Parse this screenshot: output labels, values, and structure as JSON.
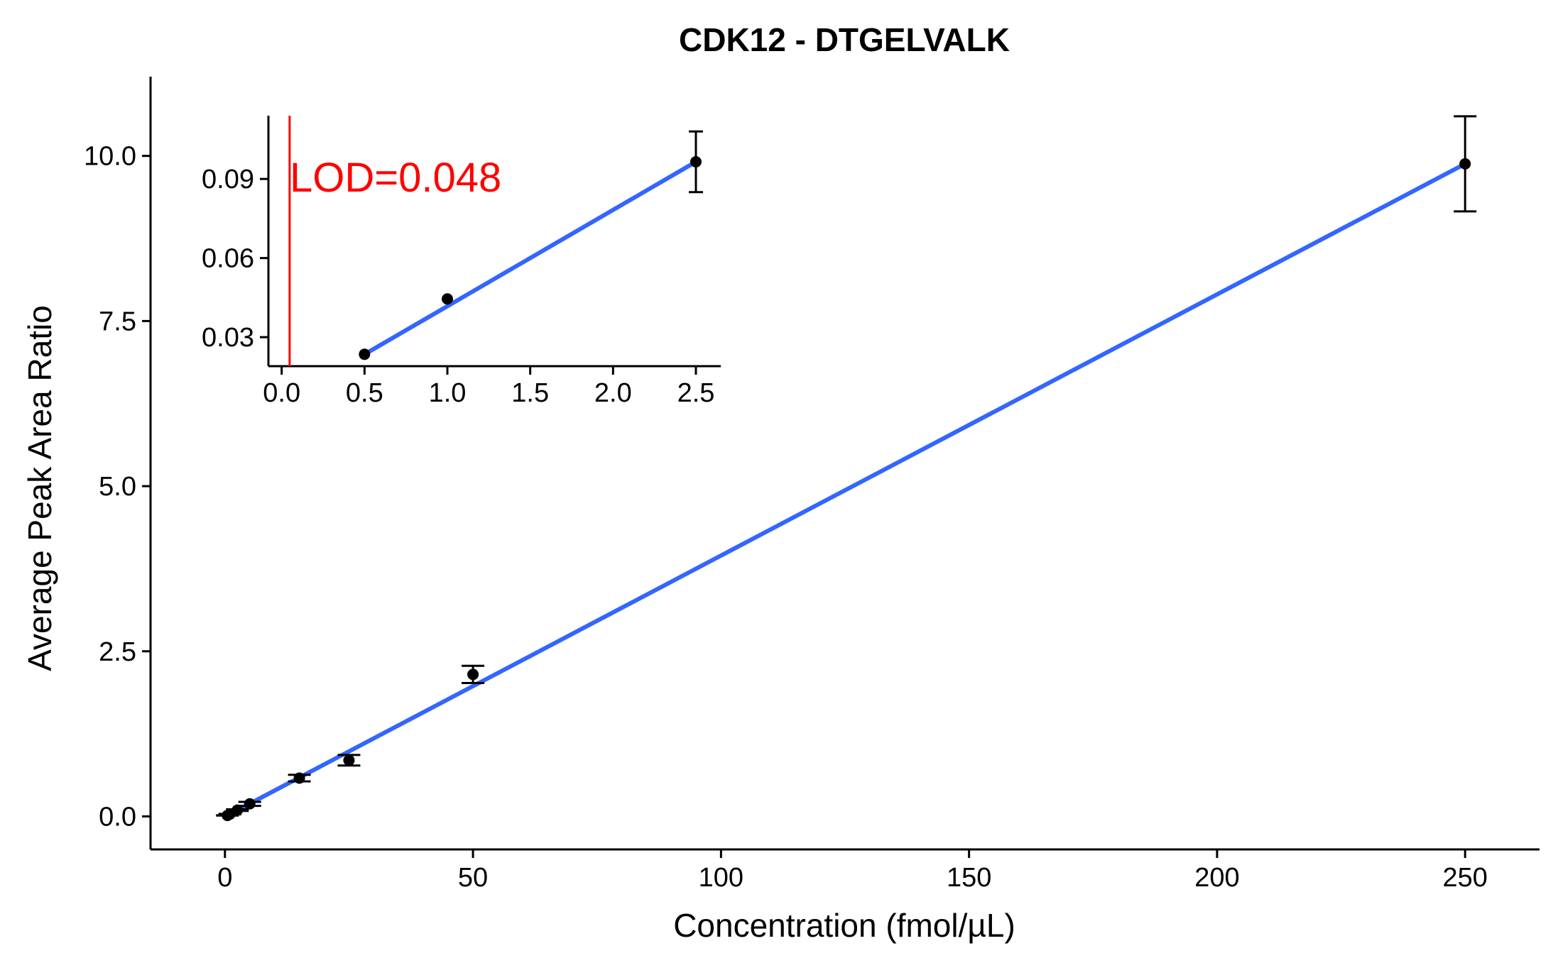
{
  "chart_data": [
    {
      "type": "scatter",
      "title": "CDK12 - DTGELVALK",
      "xlabel": "Concentration (fmol/µL)",
      "ylabel": "Average Peak Area Ratio",
      "xlim": [
        -15,
        265
      ],
      "ylim": [
        -0.5,
        11.2
      ],
      "xticks": [
        0,
        50,
        100,
        150,
        200,
        250
      ],
      "yticks": [
        0.0,
        2.5,
        5.0,
        7.5,
        10.0
      ],
      "xtick_labels": [
        "0",
        "50",
        "100",
        "150",
        "200",
        "250"
      ],
      "ytick_labels": [
        "0.0",
        "2.5",
        "5.0",
        "7.5",
        "10.0"
      ],
      "grid": false,
      "series": [
        {
          "points": [
            {
              "x": 0.5,
              "y": 0.015,
              "err": 0.002
            },
            {
              "x": 1,
              "y": 0.035,
              "err": 0.003
            },
            {
              "x": 2.5,
              "y": 0.095,
              "err": 0.012
            },
            {
              "x": 5,
              "y": 0.19,
              "err": 0.03
            },
            {
              "x": 15,
              "y": 0.58,
              "err": 0.05
            },
            {
              "x": 25,
              "y": 0.85,
              "err": 0.08
            },
            {
              "x": 50,
              "y": 2.15,
              "err": 0.13
            },
            {
              "x": 250,
              "y": 9.88,
              "err": 0.72
            }
          ]
        }
      ],
      "fit_line": {
        "color": "#3366ff",
        "x": [
          0.5,
          250
        ],
        "y": [
          0.015,
          9.88
        ]
      }
    },
    {
      "type": "scatter",
      "position": "inset",
      "xlim": [
        -0.08,
        2.65
      ],
      "ylim": [
        0.019,
        0.114
      ],
      "xticks": [
        0.0,
        0.5,
        1.0,
        1.5,
        2.0,
        2.5
      ],
      "yticks": [
        0.03,
        0.06,
        0.09
      ],
      "xtick_labels": [
        "0.0",
        "0.5",
        "1.0",
        "1.5",
        "2.0",
        "2.5"
      ],
      "ytick_labels": [
        "0.03",
        "0.06",
        "0.09"
      ],
      "grid": false,
      "series": [
        {
          "points": [
            {
              "x": 0.5,
              "y": 0.0235,
              "err": 0.0
            },
            {
              "x": 1.0,
              "y": 0.0445,
              "err": 0.0
            },
            {
              "x": 2.5,
              "y": 0.0965,
              "err": 0.0115
            }
          ]
        }
      ],
      "fit_line": {
        "color": "#3366ff",
        "x": [
          0.5,
          2.5
        ],
        "y": [
          0.0235,
          0.0965
        ]
      },
      "lod": {
        "label": "LOD=0.048",
        "value": 0.048,
        "color": "#ff0000"
      }
    }
  ]
}
